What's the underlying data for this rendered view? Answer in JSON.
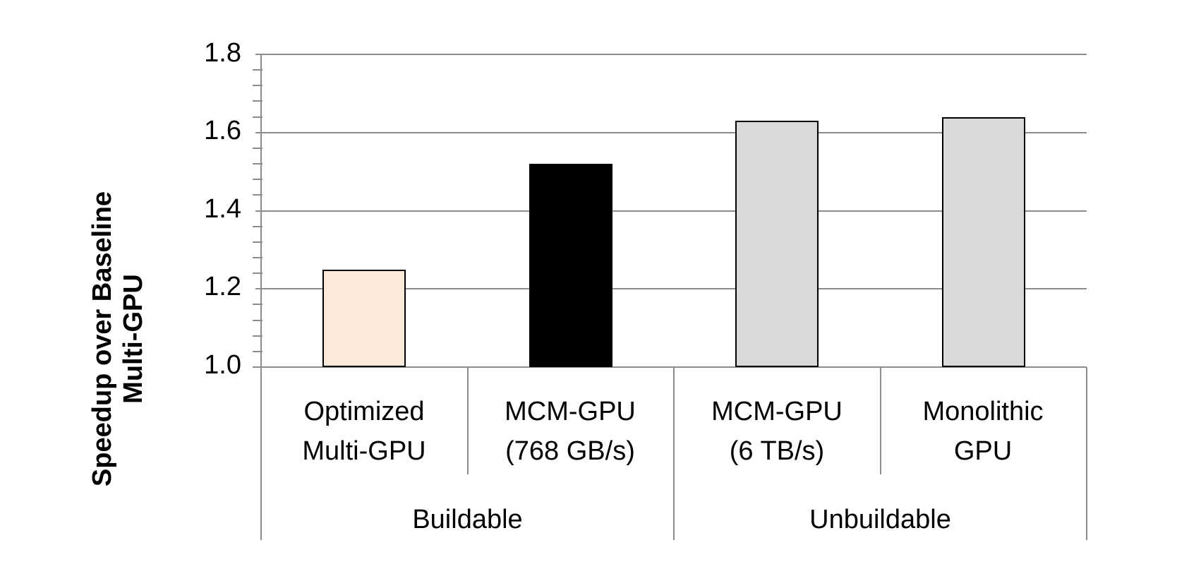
{
  "chart_data": {
    "type": "bar",
    "title": "",
    "xlabel": "",
    "ylabel": "Speedup over Baseline\nMulti-GPU",
    "ylim": [
      1.0,
      1.8
    ],
    "yticks": [
      "1.0",
      "1.2",
      "1.4",
      "1.6",
      "1.8"
    ],
    "grid": true,
    "legend": null,
    "categories": [
      "Optimized\nMulti-GPU",
      "MCM-GPU\n(768 GB/s)",
      "MCM-GPU\n(6 TB/s)",
      "Monolithic\nGPU"
    ],
    "groups": [
      {
        "label": "Buildable",
        "categories": [
          "Optimized\nMulti-GPU",
          "MCM-GPU\n(768 GB/s)"
        ]
      },
      {
        "label": "Unbuildable",
        "categories": [
          "MCM-GPU\n(6 TB/s)",
          "Monolithic\nGPU"
        ]
      }
    ],
    "values": [
      1.25,
      1.52,
      1.63,
      1.64
    ],
    "colors": [
      "#fbe9db",
      "#000000",
      "#d9d9d9",
      "#d9d9d9"
    ]
  },
  "axis": {
    "ylabel_line1": "Speedup over Baseline",
    "ylabel_line2": "Multi-GPU",
    "ticks": [
      "1.0",
      "1.2",
      "1.4",
      "1.6",
      "1.8"
    ]
  },
  "labels": {
    "cat0": "Optimized\nMulti-GPU",
    "cat1": "MCM-GPU\n(768 GB/s)",
    "cat2": "MCM-GPU\n(6 TB/s)",
    "cat3": "Monolithic\nGPU",
    "group0": "Buildable",
    "group1": "Unbuildable"
  }
}
